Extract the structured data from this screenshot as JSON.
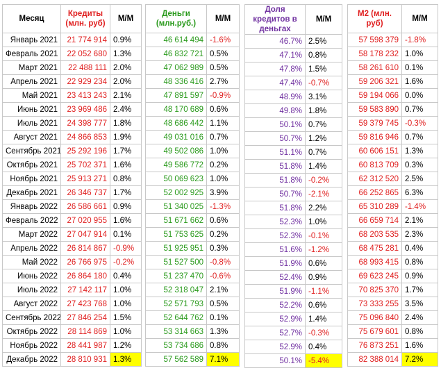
{
  "headers": {
    "month": "Месяц",
    "credits": "Кредиты (млн. руб)",
    "money": "Деньги (млн.руб.)",
    "share": "Доля кредитов в деньгах",
    "m2": "М2 (млн. руб)",
    "mm": "М/М"
  },
  "colors": {
    "credit": "#e02020",
    "money": "#2a9a1c",
    "share": "#7030a0",
    "m2": "#e02020",
    "highlight": "#ffff00"
  },
  "rows": [
    {
      "month": "Январь 2021",
      "credit": "21 774 914",
      "credit_mm": "0.9%",
      "money": "46 614 494",
      "money_mm": "-1.6%",
      "share": "46.7%",
      "share_mm": "2.5%",
      "m2": "57 598 379",
      "m2_mm": "-1.8%"
    },
    {
      "month": "Февраль 2021",
      "credit": "22 052 680",
      "credit_mm": "1.3%",
      "money": "46 832 721",
      "money_mm": "0.5%",
      "share": "47.1%",
      "share_mm": "0.8%",
      "m2": "58 178 232",
      "m2_mm": "1.0%"
    },
    {
      "month": "Март 2021",
      "credit": "22 488 111",
      "credit_mm": "2.0%",
      "money": "47 062 989",
      "money_mm": "0.5%",
      "share": "47.8%",
      "share_mm": "1.5%",
      "m2": "58 261 610",
      "m2_mm": "0.1%"
    },
    {
      "month": "Апрель 2021",
      "credit": "22 929 234",
      "credit_mm": "2.0%",
      "money": "48 336 416",
      "money_mm": "2.7%",
      "share": "47.4%",
      "share_mm": "-0.7%",
      "m2": "59 206 321",
      "m2_mm": "1.6%"
    },
    {
      "month": "Май 2021",
      "credit": "23 413 243",
      "credit_mm": "2.1%",
      "money": "47 891 597",
      "money_mm": "-0.9%",
      "share": "48.9%",
      "share_mm": "3.1%",
      "m2": "59 194 066",
      "m2_mm": "0.0%"
    },
    {
      "month": "Июнь 2021",
      "credit": "23 969 486",
      "credit_mm": "2.4%",
      "money": "48 170 689",
      "money_mm": "0.6%",
      "share": "49.8%",
      "share_mm": "1.8%",
      "m2": "59 583 890",
      "m2_mm": "0.7%"
    },
    {
      "month": "Июль 2021",
      "credit": "24 398 777",
      "credit_mm": "1.8%",
      "money": "48 686 442",
      "money_mm": "1.1%",
      "share": "50.1%",
      "share_mm": "0.7%",
      "m2": "59 379 745",
      "m2_mm": "-0.3%"
    },
    {
      "month": "Август 2021",
      "credit": "24 866 853",
      "credit_mm": "1.9%",
      "money": "49 031 016",
      "money_mm": "0.7%",
      "share": "50.7%",
      "share_mm": "1.2%",
      "m2": "59 816 946",
      "m2_mm": "0.7%"
    },
    {
      "month": "Сентябрь 2021",
      "credit": "25 292 196",
      "credit_mm": "1.7%",
      "money": "49 502 086",
      "money_mm": "1.0%",
      "share": "51.1%",
      "share_mm": "0.7%",
      "m2": "60 606 151",
      "m2_mm": "1.3%"
    },
    {
      "month": "Октябрь 2021",
      "credit": "25 702 371",
      "credit_mm": "1.6%",
      "money": "49 586 772",
      "money_mm": "0.2%",
      "share": "51.8%",
      "share_mm": "1.4%",
      "m2": "60 813 709",
      "m2_mm": "0.3%"
    },
    {
      "month": "Ноябрь 2021",
      "credit": "25 913 271",
      "credit_mm": "0.8%",
      "money": "50 069 623",
      "money_mm": "1.0%",
      "share": "51.8%",
      "share_mm": "-0.2%",
      "m2": "62 312 520",
      "m2_mm": "2.5%"
    },
    {
      "month": "Декабрь 2021",
      "credit": "26 346 737",
      "credit_mm": "1.7%",
      "money": "52 002 925",
      "money_mm": "3.9%",
      "share": "50.7%",
      "share_mm": "-2.1%",
      "m2": "66 252 865",
      "m2_mm": "6.3%"
    },
    {
      "month": "Январь 2022",
      "credit": "26 586 661",
      "credit_mm": "0.9%",
      "money": "51 340 025",
      "money_mm": "-1.3%",
      "share": "51.8%",
      "share_mm": "2.2%",
      "m2": "65 310 289",
      "m2_mm": "-1.4%"
    },
    {
      "month": "Февраль 2022",
      "credit": "27 020 955",
      "credit_mm": "1.6%",
      "money": "51 671 662",
      "money_mm": "0.6%",
      "share": "52.3%",
      "share_mm": "1.0%",
      "m2": "66 659 714",
      "m2_mm": "2.1%"
    },
    {
      "month": "Март 2022",
      "credit": "27 047 914",
      "credit_mm": "0.1%",
      "money": "51 753 625",
      "money_mm": "0.2%",
      "share": "52.3%",
      "share_mm": "-0.1%",
      "m2": "68 203 535",
      "m2_mm": "2.3%"
    },
    {
      "month": "Апрель 2022",
      "credit": "26 814 867",
      "credit_mm": "-0.9%",
      "money": "51 925 951",
      "money_mm": "0.3%",
      "share": "51.6%",
      "share_mm": "-1.2%",
      "m2": "68 475 281",
      "m2_mm": "0.4%"
    },
    {
      "month": "Май 2022",
      "credit": "26 766 975",
      "credit_mm": "-0.2%",
      "money": "51 527 500",
      "money_mm": "-0.8%",
      "share": "51.9%",
      "share_mm": "0.6%",
      "m2": "68 993 415",
      "m2_mm": "0.8%"
    },
    {
      "month": "Июнь 2022",
      "credit": "26 864 180",
      "credit_mm": "0.4%",
      "money": "51 237 470",
      "money_mm": "-0.6%",
      "share": "52.4%",
      "share_mm": "0.9%",
      "m2": "69 623 245",
      "m2_mm": "0.9%"
    },
    {
      "month": "Июль 2022",
      "credit": "27 142 117",
      "credit_mm": "1.0%",
      "money": "52 318 047",
      "money_mm": "2.1%",
      "share": "51.9%",
      "share_mm": "-1.1%",
      "m2": "70 825 370",
      "m2_mm": "1.7%"
    },
    {
      "month": "Август 2022",
      "credit": "27 423 768",
      "credit_mm": "1.0%",
      "money": "52 571 793",
      "money_mm": "0.5%",
      "share": "52.2%",
      "share_mm": "0.6%",
      "m2": "73 333 255",
      "m2_mm": "3.5%"
    },
    {
      "month": "Сентябрь 2022",
      "credit": "27 846 254",
      "credit_mm": "1.5%",
      "money": "52 644 762",
      "money_mm": "0.1%",
      "share": "52.9%",
      "share_mm": "1.4%",
      "m2": "75 096 840",
      "m2_mm": "2.4%"
    },
    {
      "month": "Октябрь 2022",
      "credit": "28 114 869",
      "credit_mm": "1.0%",
      "money": "53 314 663",
      "money_mm": "1.3%",
      "share": "52.7%",
      "share_mm": "-0.3%",
      "m2": "75 679 601",
      "m2_mm": "0.8%"
    },
    {
      "month": "Ноябрь 2022",
      "credit": "28 441 987",
      "credit_mm": "1.2%",
      "money": "53 734 686",
      "money_mm": "0.8%",
      "share": "52.9%",
      "share_mm": "0.4%",
      "m2": "76 873 251",
      "m2_mm": "1.6%"
    },
    {
      "month": "Декабрь 2022",
      "credit": "28 810 931",
      "credit_mm": "1.3%",
      "money": "57 562 589",
      "money_mm": "7.1%",
      "share": "50.1%",
      "share_mm": "-5.4%",
      "m2": "82 388 014",
      "m2_mm": "7.2%",
      "highlight": true
    }
  ]
}
